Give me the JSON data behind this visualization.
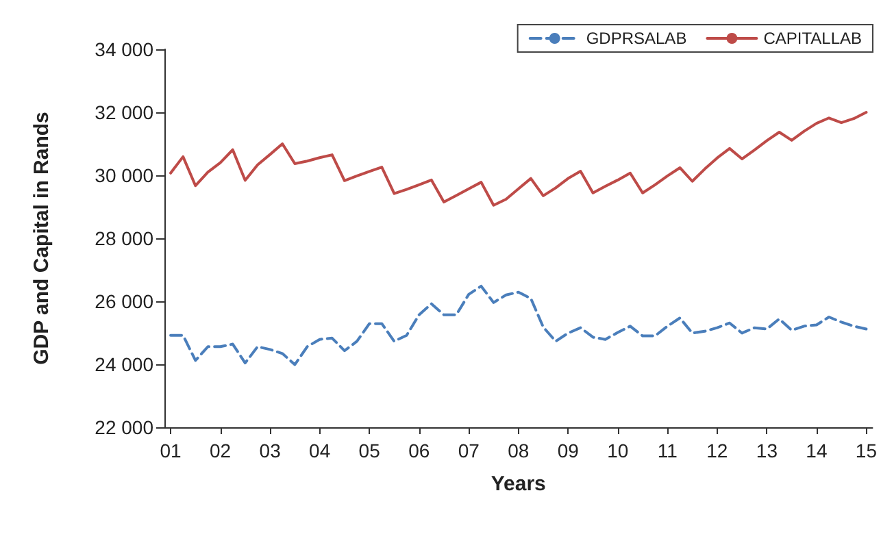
{
  "chart_data": {
    "type": "line",
    "xlabel": "Years",
    "ylabel": "GDP and Capital in Rands",
    "categories": [
      "01",
      null,
      null,
      null,
      "02",
      null,
      null,
      null,
      "03",
      null,
      null,
      null,
      "04",
      null,
      null,
      null,
      "05",
      null,
      null,
      null,
      "06",
      null,
      null,
      null,
      "07",
      null,
      null,
      null,
      "08",
      null,
      null,
      null,
      "09",
      null,
      null,
      null,
      "10",
      null,
      null,
      null,
      "11",
      null,
      null,
      null,
      "12",
      null,
      null,
      null,
      "13",
      null,
      null,
      null,
      "14",
      null,
      null,
      null,
      "15"
    ],
    "series": [
      {
        "name": "GDPRSALAB",
        "color": "#4a7ebb",
        "line_style": "dashed",
        "values": [
          24920,
          24920,
          24120,
          24560,
          24560,
          24640,
          24040,
          24560,
          24470,
          24340,
          23990,
          24560,
          24790,
          24830,
          24430,
          24730,
          25290,
          25290,
          24730,
          24920,
          25570,
          25920,
          25570,
          25570,
          26220,
          26480,
          25960,
          26200,
          26290,
          26090,
          25180,
          24730,
          24990,
          25160,
          24860,
          24790,
          25010,
          25210,
          24900,
          24900,
          25210,
          25470,
          24990,
          25050,
          25160,
          25310,
          24990,
          25160,
          25120,
          25440,
          25080,
          25210,
          25250,
          25500,
          25340,
          25210,
          25120
        ]
      },
      {
        "name": "CAPITALLAB",
        "color": "#be4b48",
        "line_style": "solid",
        "values": [
          30070,
          30590,
          29670,
          30100,
          30400,
          30810,
          29840,
          30330,
          30660,
          31000,
          30370,
          30450,
          30560,
          30650,
          29830,
          29980,
          30120,
          30260,
          29420,
          29550,
          29700,
          29850,
          29150,
          29360,
          29570,
          29780,
          29050,
          29240,
          29570,
          29900,
          29350,
          29600,
          29900,
          30130,
          29440,
          29650,
          29850,
          30070,
          29440,
          29700,
          29980,
          30240,
          29810,
          30200,
          30550,
          30850,
          30520,
          30800,
          31100,
          31370,
          31110,
          31400,
          31650,
          31820,
          31670,
          31800,
          32000
        ]
      }
    ],
    "ylim": [
      22000,
      34000
    ],
    "yticks": [
      {
        "value": 22000,
        "label": "22 000"
      },
      {
        "value": 24000,
        "label": "24 000"
      },
      {
        "value": 26000,
        "label": "26 000"
      },
      {
        "value": 28000,
        "label": "28 000"
      },
      {
        "value": 30000,
        "label": "30 000"
      },
      {
        "value": 32000,
        "label": "32 000"
      },
      {
        "value": 34000,
        "label": "34 000"
      }
    ],
    "grid": false,
    "legend": "top right",
    "marker": "none"
  }
}
